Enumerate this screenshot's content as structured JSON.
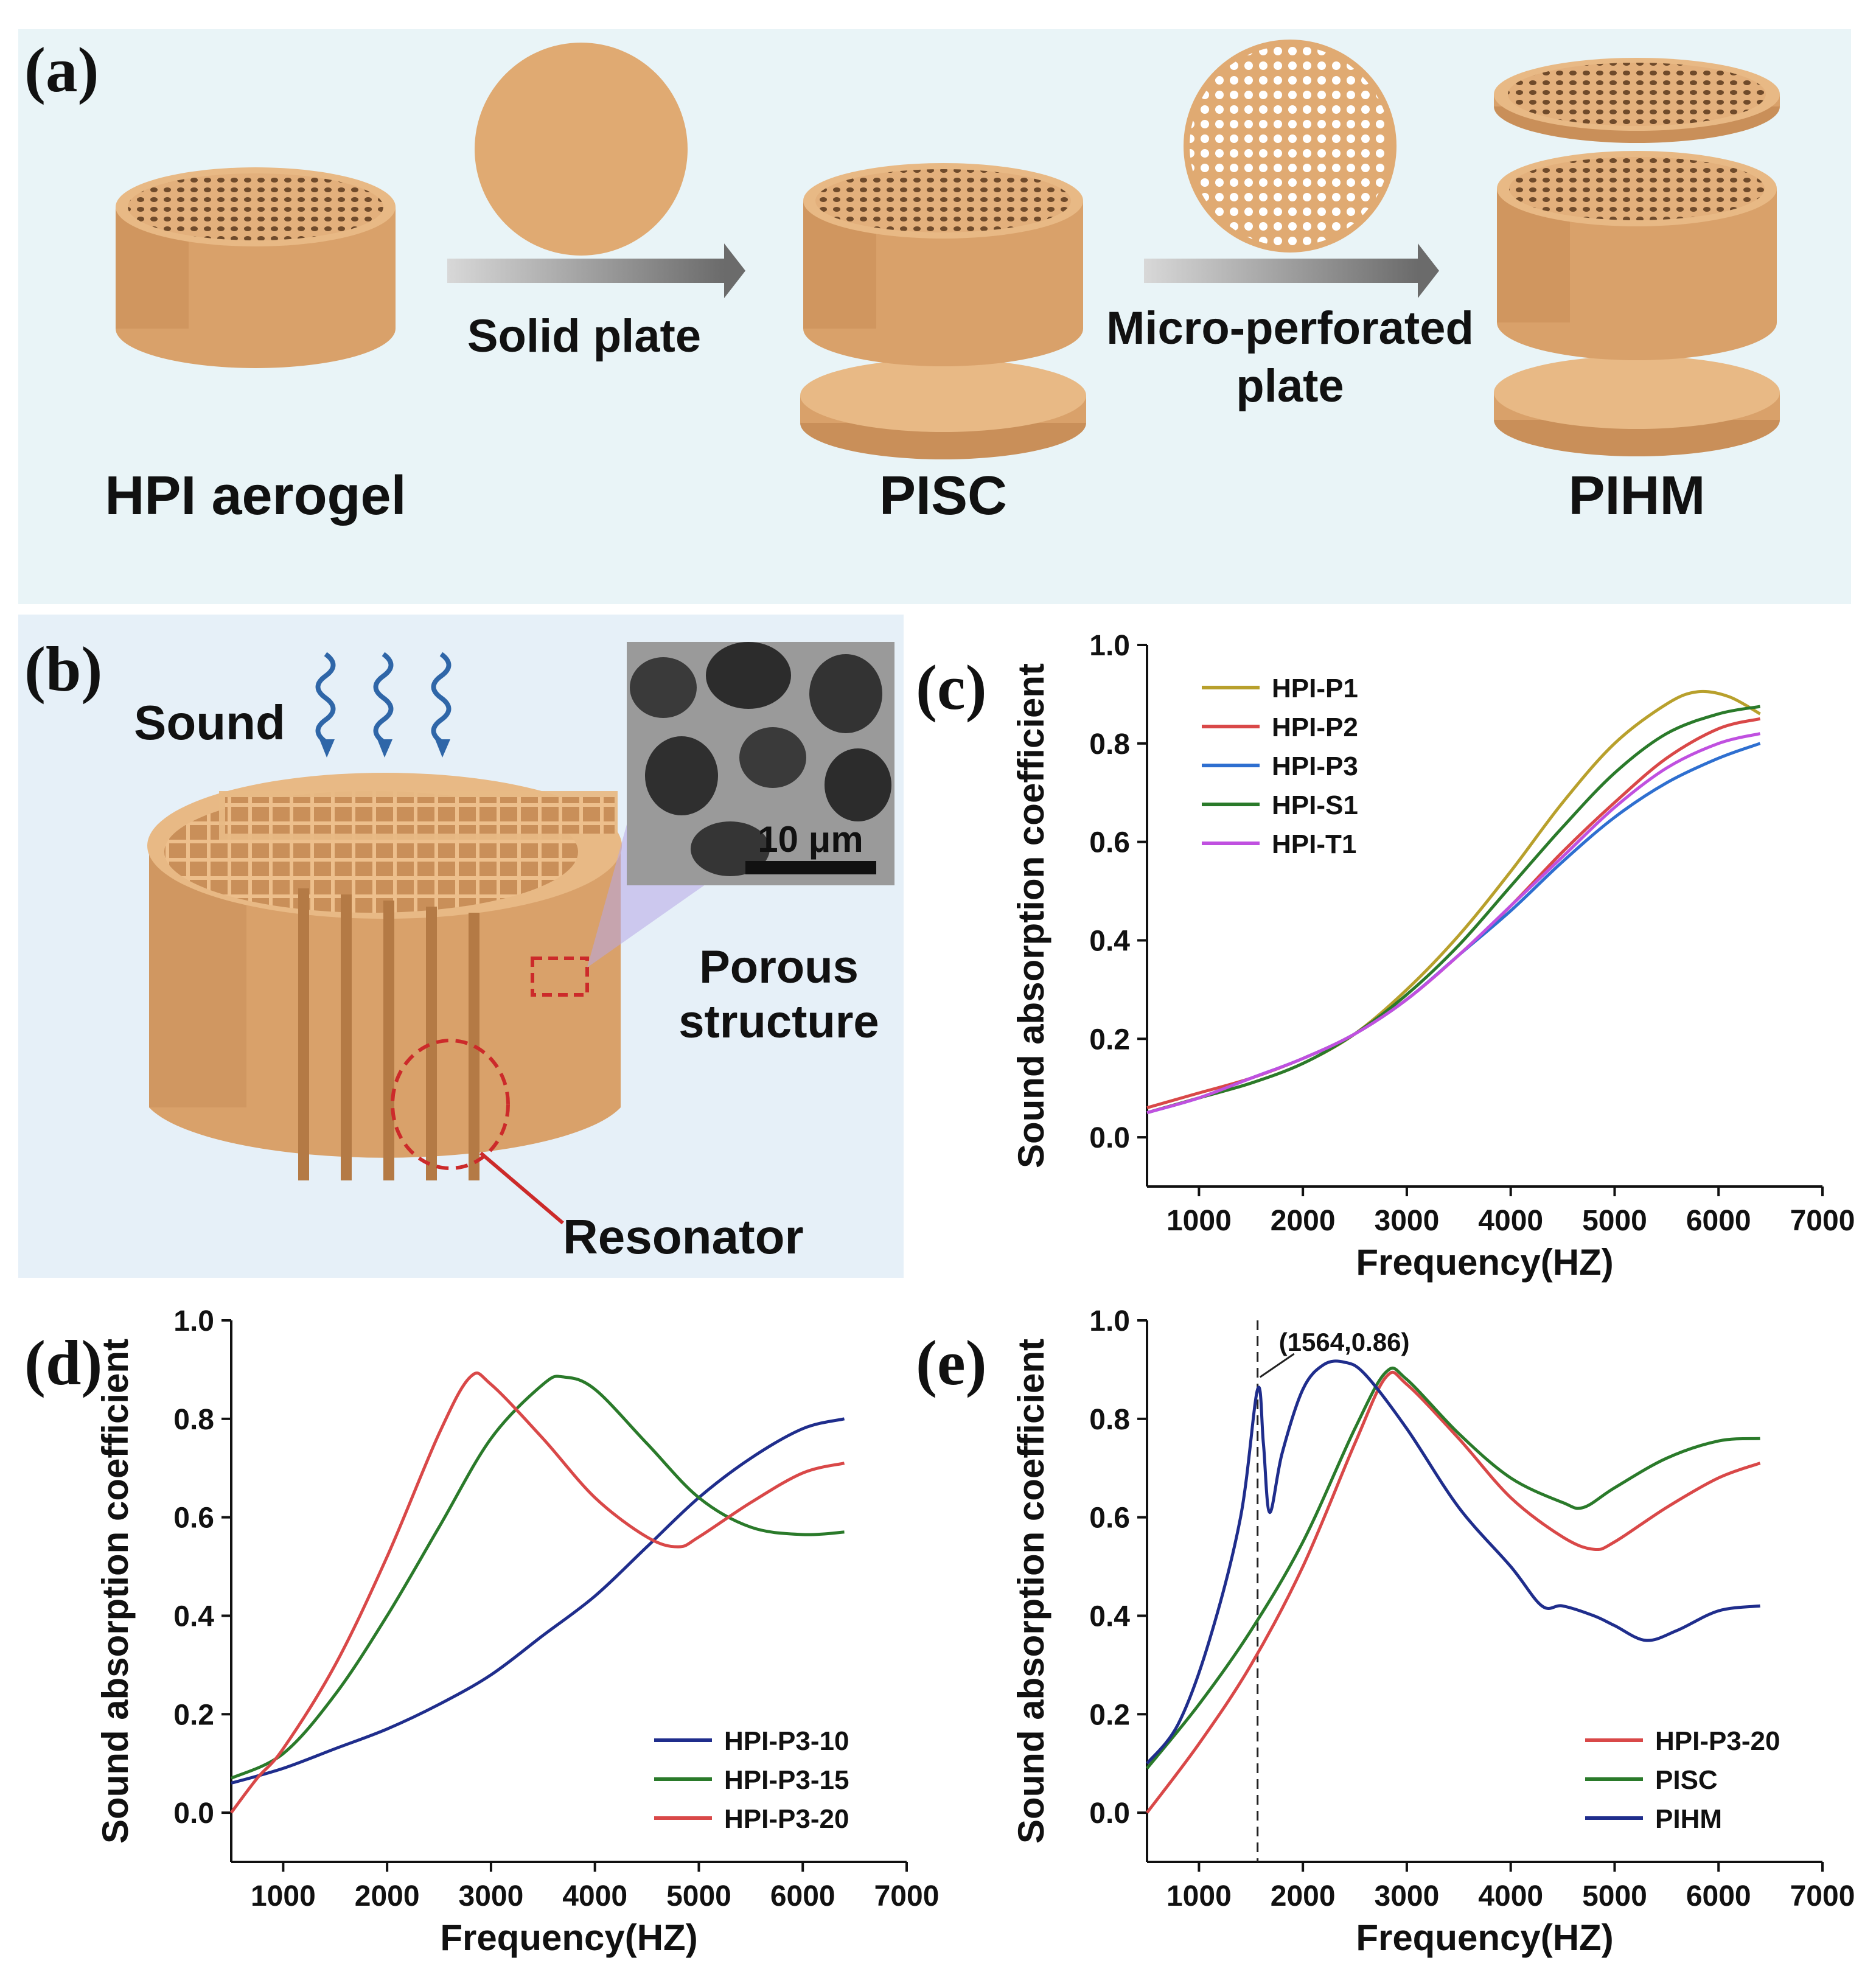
{
  "panel_labels": [
    "(a)",
    "(b)",
    "(c)",
    "(d)",
    "(e)"
  ],
  "colors": {
    "aerogel": "#e0aa72",
    "aerogel_dark": "#c98f59",
    "aerogel_top": "#e8b985",
    "bg_a": "#e9f4f7",
    "bg_b": "#e6f0f8",
    "arrow": "#6b6b6b",
    "wave": "#2f66a8",
    "marker": "#cc2a2a"
  },
  "panel_a": {
    "labels": {
      "hpi": "HPI aerogel",
      "pisc": "PISC",
      "pihm": "PIHM",
      "solid_plate": "Solid plate",
      "micro_line1": "Micro-perforated",
      "micro_line2": "plate"
    }
  },
  "panel_b": {
    "sound": "Sound",
    "scale": "10 μm",
    "porous_line1": "Porous",
    "porous_line2": "structure",
    "resonator": "Resonator"
  },
  "chart_data": [
    {
      "id": "c",
      "type": "line",
      "xlabel": "Frequency(HZ)",
      "ylabel": "Sound absorption coefficient",
      "xlim": [
        500,
        7000
      ],
      "ylim": [
        -0.1,
        1.0
      ],
      "xticks": [
        1000,
        2000,
        3000,
        4000,
        5000,
        6000,
        7000
      ],
      "yticks": [
        0.0,
        0.2,
        0.4,
        0.6,
        0.8,
        1.0
      ],
      "legend_position": "top-left",
      "series": [
        {
          "name": "HPI-P1",
          "color": "#b8a02c",
          "x": [
            500,
            1000,
            1500,
            2000,
            2500,
            3000,
            3500,
            4000,
            4500,
            5000,
            5500,
            5800,
            6100,
            6400
          ],
          "y": [
            0.05,
            0.08,
            0.11,
            0.15,
            0.21,
            0.3,
            0.41,
            0.54,
            0.68,
            0.8,
            0.88,
            0.905,
            0.895,
            0.86
          ]
        },
        {
          "name": "HPI-P2",
          "color": "#d94848",
          "x": [
            500,
            1000,
            1500,
            2000,
            2500,
            3000,
            3500,
            4000,
            4500,
            5000,
            5500,
            6000,
            6400
          ],
          "y": [
            0.06,
            0.09,
            0.12,
            0.16,
            0.21,
            0.28,
            0.37,
            0.47,
            0.58,
            0.68,
            0.77,
            0.83,
            0.85
          ]
        },
        {
          "name": "HPI-P3",
          "color": "#2e6fd0",
          "x": [
            500,
            1000,
            1500,
            2000,
            2500,
            3000,
            3500,
            4000,
            4500,
            5000,
            5500,
            6000,
            6400
          ],
          "y": [
            0.05,
            0.08,
            0.12,
            0.16,
            0.21,
            0.28,
            0.37,
            0.46,
            0.56,
            0.65,
            0.72,
            0.77,
            0.8
          ]
        },
        {
          "name": "HPI-S1",
          "color": "#2a7a2a",
          "x": [
            500,
            1000,
            1500,
            2000,
            2500,
            3000,
            3500,
            4000,
            4500,
            5000,
            5500,
            6000,
            6400
          ],
          "y": [
            0.05,
            0.08,
            0.11,
            0.15,
            0.21,
            0.29,
            0.39,
            0.51,
            0.63,
            0.74,
            0.82,
            0.86,
            0.875
          ]
        },
        {
          "name": "HPI-T1",
          "color": "#c050e0",
          "x": [
            500,
            1000,
            1500,
            2000,
            2500,
            3000,
            3500,
            4000,
            4500,
            5000,
            5500,
            6000,
            6400
          ],
          "y": [
            0.05,
            0.08,
            0.12,
            0.16,
            0.21,
            0.28,
            0.37,
            0.47,
            0.57,
            0.67,
            0.75,
            0.8,
            0.82
          ]
        }
      ]
    },
    {
      "id": "d",
      "type": "line",
      "xlabel": "Frequency(HZ)",
      "ylabel": "Sound absorption coefficient",
      "xlim": [
        500,
        7000
      ],
      "ylim": [
        -0.1,
        1.0
      ],
      "xticks": [
        1000,
        2000,
        3000,
        4000,
        5000,
        6000,
        7000
      ],
      "yticks": [
        0.0,
        0.2,
        0.4,
        0.6,
        0.8,
        1.0
      ],
      "legend_position": "bottom-right",
      "series": [
        {
          "name": "HPI-P3-10",
          "color": "#1f2d8c",
          "x": [
            500,
            1000,
            1500,
            2000,
            2500,
            3000,
            3500,
            4000,
            4500,
            5000,
            5500,
            6000,
            6400
          ],
          "y": [
            0.06,
            0.09,
            0.13,
            0.17,
            0.22,
            0.28,
            0.36,
            0.44,
            0.54,
            0.64,
            0.72,
            0.78,
            0.8
          ]
        },
        {
          "name": "HPI-P3-15",
          "color": "#2a7a2a",
          "x": [
            500,
            1000,
            1500,
            2000,
            2500,
            3000,
            3500,
            3700,
            4000,
            4500,
            5000,
            5500,
            6000,
            6400
          ],
          "y": [
            0.07,
            0.12,
            0.24,
            0.4,
            0.58,
            0.76,
            0.87,
            0.885,
            0.86,
            0.75,
            0.64,
            0.58,
            0.565,
            0.57
          ]
        },
        {
          "name": "HPI-P3-20",
          "color": "#d94848",
          "x": [
            500,
            750,
            1000,
            1500,
            2000,
            2500,
            2800,
            3000,
            3500,
            4000,
            4500,
            4800,
            5000,
            5500,
            6000,
            6400
          ],
          "y": [
            0.0,
            0.07,
            0.13,
            0.3,
            0.52,
            0.77,
            0.885,
            0.87,
            0.76,
            0.64,
            0.56,
            0.54,
            0.56,
            0.63,
            0.69,
            0.71
          ]
        }
      ]
    },
    {
      "id": "e",
      "type": "line",
      "xlabel": "Frequency(HZ)",
      "ylabel": "Sound absorption coefficient",
      "xlim": [
        500,
        7000
      ],
      "ylim": [
        -0.1,
        1.0
      ],
      "xticks": [
        1000,
        2000,
        3000,
        4000,
        5000,
        6000,
        7000
      ],
      "yticks": [
        0.0,
        0.2,
        0.4,
        0.6,
        0.8,
        1.0
      ],
      "legend_position": "bottom-right",
      "annotation": {
        "text": "(1564,0.86)",
        "x": 1564,
        "y": 0.86
      },
      "series": [
        {
          "name": "HPI-P3-20",
          "color": "#d94848",
          "x": [
            500,
            1000,
            1500,
            2000,
            2500,
            2800,
            3000,
            3500,
            4000,
            4500,
            4800,
            5000,
            5500,
            6000,
            6400
          ],
          "y": [
            0.0,
            0.14,
            0.3,
            0.5,
            0.75,
            0.885,
            0.87,
            0.76,
            0.64,
            0.56,
            0.535,
            0.55,
            0.62,
            0.68,
            0.71
          ]
        },
        {
          "name": "PISC",
          "color": "#2a7a2a",
          "x": [
            500,
            1000,
            1500,
            2000,
            2500,
            2800,
            3000,
            3500,
            4000,
            4500,
            4700,
            5000,
            5500,
            6000,
            6400
          ],
          "y": [
            0.09,
            0.22,
            0.37,
            0.55,
            0.78,
            0.895,
            0.88,
            0.77,
            0.68,
            0.63,
            0.62,
            0.66,
            0.72,
            0.755,
            0.76
          ]
        },
        {
          "name": "PIHM",
          "color": "#1f2d8c",
          "x": [
            500,
            800,
            1100,
            1400,
            1564,
            1620,
            1680,
            1800,
            2000,
            2200,
            2400,
            2600,
            3000,
            3500,
            4000,
            4300,
            4500,
            4800,
            5000,
            5300,
            5600,
            6000,
            6400
          ],
          "y": [
            0.1,
            0.18,
            0.35,
            0.6,
            0.86,
            0.75,
            0.61,
            0.73,
            0.86,
            0.91,
            0.915,
            0.89,
            0.78,
            0.62,
            0.5,
            0.42,
            0.42,
            0.4,
            0.38,
            0.35,
            0.37,
            0.41,
            0.42
          ]
        }
      ]
    }
  ]
}
